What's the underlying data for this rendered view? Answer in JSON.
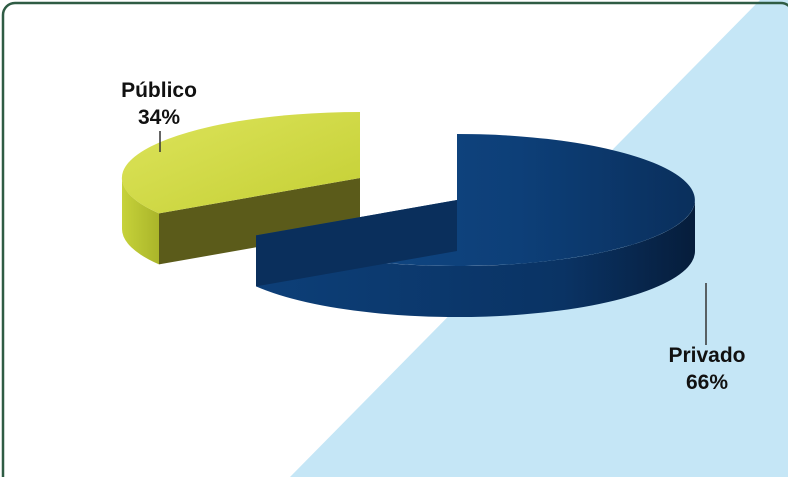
{
  "chart_data": {
    "type": "pie",
    "title": "",
    "slices": [
      {
        "label": "Privado",
        "value": 66,
        "value_label": "66%",
        "color": "#0d3f78"
      },
      {
        "label": "Público",
        "value": 34,
        "value_label": "34%",
        "color": "#c8d43a"
      }
    ],
    "three_d": true,
    "exploded": true,
    "legend": "none"
  },
  "colors": {
    "frame_border": "#2f5c44",
    "background_band": "#c5e6f6",
    "leader_line": "#333333"
  }
}
